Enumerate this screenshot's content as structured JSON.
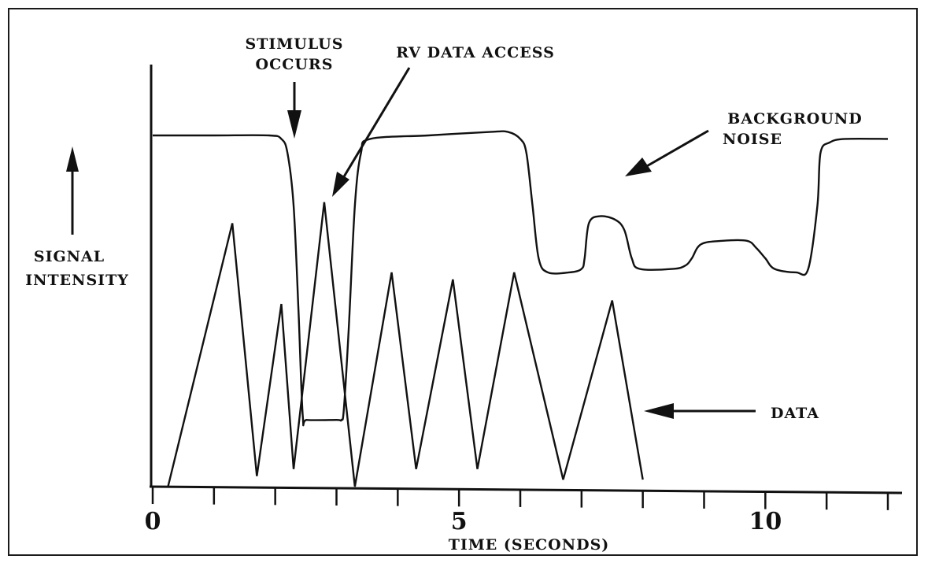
{
  "chart_data": {
    "type": "line",
    "xlabel": "TIME (SECONDS)",
    "ylabel_line1": "SIGNAL",
    "ylabel_line2": "INTENSITY",
    "xlim": [
      0,
      12
    ],
    "ylim": [
      0,
      100
    ],
    "x_tick_labels": [
      {
        "x": 0,
        "label": "0"
      },
      {
        "x": 5,
        "label": "5"
      },
      {
        "x": 10,
        "label": "10"
      }
    ],
    "x_ticks": [
      0,
      1,
      2,
      3,
      4,
      5,
      6,
      7,
      8,
      9,
      10,
      11,
      12
    ],
    "grid": false,
    "series": [
      {
        "name": "BACKGROUND NOISE",
        "style": "smooth",
        "points": [
          [
            0,
            100
          ],
          [
            1,
            100
          ],
          [
            1.9,
            100
          ],
          [
            2.1,
            99
          ],
          [
            2.2,
            95
          ],
          [
            2.3,
            80
          ],
          [
            2.38,
            50
          ],
          [
            2.45,
            20
          ],
          [
            2.52,
            19
          ],
          [
            3.0,
            19
          ],
          [
            3.08,
            19
          ],
          [
            3.12,
            22
          ],
          [
            3.2,
            45
          ],
          [
            3.3,
            80
          ],
          [
            3.4,
            95
          ],
          [
            3.55,
            99
          ],
          [
            4.5,
            100
          ],
          [
            5.5,
            101
          ],
          [
            5.8,
            101
          ],
          [
            6.0,
            99
          ],
          [
            6.1,
            95
          ],
          [
            6.2,
            80
          ],
          [
            6.3,
            65
          ],
          [
            6.45,
            61
          ],
          [
            6.8,
            61
          ],
          [
            7.0,
            62
          ],
          [
            7.05,
            65
          ],
          [
            7.12,
            75
          ],
          [
            7.3,
            77
          ],
          [
            7.55,
            76
          ],
          [
            7.7,
            73
          ],
          [
            7.82,
            65
          ],
          [
            7.95,
            62
          ],
          [
            8.5,
            62
          ],
          [
            8.7,
            63
          ],
          [
            8.8,
            65
          ],
          [
            8.95,
            69
          ],
          [
            9.3,
            70
          ],
          [
            9.7,
            70
          ],
          [
            9.85,
            68
          ],
          [
            10.0,
            65
          ],
          [
            10.15,
            62
          ],
          [
            10.5,
            61
          ],
          [
            10.7,
            62
          ],
          [
            10.85,
            80
          ],
          [
            10.9,
            95
          ],
          [
            11.05,
            98
          ],
          [
            11.3,
            99
          ],
          [
            12.0,
            99
          ]
        ]
      },
      {
        "name": "DATA",
        "style": "polyline",
        "points": [
          [
            0.25,
            0
          ],
          [
            1.3,
            75
          ],
          [
            1.7,
            3
          ],
          [
            2.1,
            52
          ],
          [
            2.3,
            5
          ],
          [
            2.8,
            81
          ],
          [
            3.3,
            0
          ],
          [
            3.9,
            61
          ],
          [
            4.3,
            5
          ],
          [
            4.9,
            59
          ],
          [
            5.3,
            5
          ],
          [
            5.9,
            61
          ],
          [
            6.7,
            2
          ],
          [
            7.5,
            53
          ],
          [
            8.0,
            2
          ]
        ]
      }
    ],
    "annotations": [
      {
        "id": "stimulus",
        "lines": [
          "STIMULUS",
          "OCCURS"
        ]
      },
      {
        "id": "rv",
        "lines": [
          "RV DATA ACCESS"
        ]
      },
      {
        "id": "noise",
        "lines": [
          "BACKGROUND",
          "NOISE"
        ]
      },
      {
        "id": "data",
        "lines": [
          "DATA"
        ]
      }
    ],
    "colors": {
      "ink": "#111111",
      "background": "#ffffff"
    }
  }
}
